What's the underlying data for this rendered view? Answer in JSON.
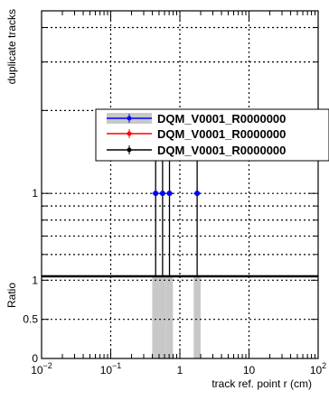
{
  "chart_data": {
    "type": "bar",
    "xlabel": "track ref. point r (cm)",
    "ylabel": "duplicate tracks",
    "ratio_ylabel": "Ratio",
    "x_scale": "log",
    "xlim": [
      0.01,
      100
    ],
    "x_ticks": [
      {
        "value": 0.01,
        "base": "10",
        "exp": "−2"
      },
      {
        "value": 0.1,
        "base": "10",
        "exp": "−1"
      },
      {
        "value": 1,
        "base": "1",
        "exp": ""
      },
      {
        "value": 10,
        "base": "10",
        "exp": ""
      },
      {
        "value": 100,
        "base": "10",
        "exp": "2"
      }
    ],
    "y_scale": "log",
    "ylim": [
      0.5,
      4.6
    ],
    "y_tick_labels": [
      {
        "value": 1,
        "label": "1"
      }
    ],
    "ratio_ylim": [
      0,
      1.05
    ],
    "ratio_y_ticks": [
      {
        "value": 0,
        "label": "0"
      },
      {
        "value": 0.5,
        "label": "0.5"
      },
      {
        "value": 1,
        "label": "1"
      }
    ],
    "grid": true,
    "legend_position": "top-right",
    "series": [
      {
        "name": "DQM_V0001_R0000000",
        "color": "#0000ff",
        "style": "band-with-marker",
        "band_color": "#c8c8c8"
      },
      {
        "name": "DQM_V0001_R0000000",
        "color": "#ff0000",
        "style": "line-with-marker"
      },
      {
        "name": "DQM_V0001_R0000000",
        "color": "#000000",
        "style": "line-with-marker"
      }
    ],
    "bins": [
      {
        "x_low": 0.398,
        "x_high": 0.501,
        "y": 1
      },
      {
        "x_low": 0.501,
        "x_high": 0.631,
        "y": 1
      },
      {
        "x_low": 0.631,
        "x_high": 0.794,
        "y": 1
      },
      {
        "x_low": 1.585,
        "x_high": 1.995,
        "y": 1
      }
    ],
    "ratio_bins": [
      {
        "x_low": 0.398,
        "x_high": 0.501,
        "y": 1
      },
      {
        "x_low": 0.501,
        "x_high": 0.631,
        "y": 1
      },
      {
        "x_low": 0.631,
        "x_high": 0.794,
        "y": 1
      },
      {
        "x_low": 1.585,
        "x_high": 1.995,
        "y": 1
      }
    ]
  }
}
